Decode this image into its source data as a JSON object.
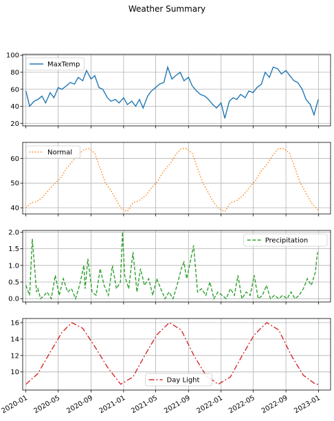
{
  "chart_data": {
    "title": "Weather Summary",
    "x_axis": {
      "type": "date",
      "range": [
        "2019-12-20",
        "2023-02-15"
      ],
      "tick_labels": [
        "2020-01",
        "2020-05",
        "2020-09",
        "2021-01",
        "2021-05",
        "2021-09",
        "2022-01",
        "2022-05",
        "2022-09",
        "2023-01"
      ],
      "tick_dates": [
        "2020-01-01",
        "2020-05-01",
        "2020-09-01",
        "2021-01-01",
        "2021-05-01",
        "2021-09-01",
        "2022-01-01",
        "2022-05-01",
        "2022-09-01",
        "2023-01-01"
      ]
    },
    "grid": true,
    "panels": [
      {
        "type": "line",
        "series_name": "MaxTemp",
        "color": "#1f77b4",
        "line_style": "solid",
        "legend_position": "upper-left",
        "ylim": [
          17,
          101
        ],
        "yticks": [
          20,
          40,
          60,
          80,
          100
        ],
        "x": [
          "2020-01-01",
          "2020-01-15",
          "2020-02-01",
          "2020-02-15",
          "2020-03-01",
          "2020-03-15",
          "2020-04-01",
          "2020-04-15",
          "2020-05-01",
          "2020-05-15",
          "2020-06-01",
          "2020-06-15",
          "2020-07-01",
          "2020-07-15",
          "2020-08-01",
          "2020-08-15",
          "2020-09-01",
          "2020-09-15",
          "2020-10-01",
          "2020-10-15",
          "2020-11-01",
          "2020-11-15",
          "2020-12-01",
          "2020-12-15",
          "2021-01-01",
          "2021-01-15",
          "2021-02-01",
          "2021-02-15",
          "2021-03-01",
          "2021-03-15",
          "2021-04-01",
          "2021-04-15",
          "2021-05-01",
          "2021-05-15",
          "2021-06-01",
          "2021-06-15",
          "2021-07-01",
          "2021-07-15",
          "2021-08-01",
          "2021-08-15",
          "2021-09-01",
          "2021-09-15",
          "2021-10-01",
          "2021-10-15",
          "2021-11-01",
          "2021-11-15",
          "2021-12-01",
          "2021-12-15",
          "2022-01-01",
          "2022-01-15",
          "2022-02-01",
          "2022-02-15",
          "2022-03-01",
          "2022-03-15",
          "2022-04-01",
          "2022-04-15",
          "2022-05-01",
          "2022-05-15",
          "2022-06-01",
          "2022-06-15",
          "2022-07-01",
          "2022-07-15",
          "2022-08-01",
          "2022-08-15",
          "2022-09-01",
          "2022-09-15",
          "2022-10-01",
          "2022-10-15",
          "2022-11-01",
          "2022-11-15",
          "2022-12-01",
          "2022-12-15",
          "2022-12-31"
        ],
        "values": [
          58,
          40,
          46,
          48,
          52,
          44,
          56,
          50,
          62,
          60,
          64,
          68,
          66,
          74,
          70,
          82,
          72,
          76,
          62,
          60,
          50,
          46,
          48,
          44,
          50,
          42,
          46,
          40,
          48,
          38,
          52,
          58,
          62,
          66,
          68,
          86,
          72,
          76,
          80,
          70,
          74,
          64,
          58,
          54,
          52,
          48,
          42,
          38,
          44,
          26,
          46,
          50,
          48,
          54,
          50,
          58,
          56,
          62,
          66,
          80,
          74,
          86,
          84,
          78,
          82,
          76,
          70,
          68,
          60,
          48,
          42,
          30,
          48
        ]
      },
      {
        "type": "line",
        "series_name": "Normal",
        "color": "#ff7f0e",
        "line_style": "dotted",
        "legend_position": "upper-left",
        "ylim": [
          37.5,
          66.5
        ],
        "yticks": [
          40,
          50,
          60
        ],
        "x": [
          "2020-01-01",
          "2020-01-20",
          "2020-02-10",
          "2020-03-01",
          "2020-03-25",
          "2020-04-15",
          "2020-05-10",
          "2020-06-01",
          "2020-06-25",
          "2020-07-15",
          "2020-08-05",
          "2020-08-25",
          "2020-09-15",
          "2020-10-05",
          "2020-10-25",
          "2020-11-15",
          "2020-12-05",
          "2020-12-25",
          "2021-01-15",
          "2021-02-05",
          "2021-03-01",
          "2021-03-25",
          "2021-04-15",
          "2021-05-10",
          "2021-06-01",
          "2021-06-25",
          "2021-07-15",
          "2021-08-05",
          "2021-08-25",
          "2021-09-15",
          "2021-10-05",
          "2021-10-25",
          "2021-11-15",
          "2021-12-05",
          "2021-12-25",
          "2022-01-15",
          "2022-02-05",
          "2022-03-01",
          "2022-03-25",
          "2022-04-15",
          "2022-05-10",
          "2022-06-01",
          "2022-06-25",
          "2022-07-15",
          "2022-08-05",
          "2022-08-25",
          "2022-09-15",
          "2022-10-05",
          "2022-10-25",
          "2022-11-15",
          "2022-12-05",
          "2022-12-31"
        ],
        "values": [
          40,
          42,
          42.5,
          44,
          47,
          49.5,
          52,
          56,
          59,
          61.5,
          63.5,
          64,
          62,
          56,
          50,
          47,
          43,
          39.5,
          38.5,
          42,
          43,
          45,
          48,
          51,
          55,
          58,
          61.5,
          64,
          64,
          62,
          56,
          50,
          46,
          42,
          39.5,
          38.5,
          42,
          43,
          45,
          48,
          51,
          55,
          58,
          61.5,
          64,
          64,
          62,
          56,
          50,
          46,
          42,
          39
        ]
      },
      {
        "type": "line",
        "series_name": "Precipitation",
        "color": "#2ca02c",
        "line_style": "dashed",
        "legend_position": "upper-right",
        "ylim": [
          -0.1,
          2.05
        ],
        "yticks": [
          0.0,
          0.5,
          1.0,
          1.5,
          2.0
        ],
        "ytick_labels": [
          "0.0",
          "0.5",
          "1.0",
          "1.5",
          "2.0"
        ],
        "x": [
          "2020-01-01",
          "2020-01-15",
          "2020-01-25",
          "2020-02-10",
          "2020-02-15",
          "2020-02-25",
          "2020-03-10",
          "2020-03-20",
          "2020-04-05",
          "2020-04-20",
          "2020-05-05",
          "2020-05-20",
          "2020-06-05",
          "2020-06-20",
          "2020-07-05",
          "2020-07-20",
          "2020-08-05",
          "2020-08-10",
          "2020-08-20",
          "2020-09-05",
          "2020-09-20",
          "2020-10-05",
          "2020-10-20",
          "2020-11-05",
          "2020-11-20",
          "2020-12-05",
          "2020-12-20",
          "2020-12-28",
          "2021-01-05",
          "2021-01-20",
          "2021-02-05",
          "2021-02-20",
          "2021-03-05",
          "2021-03-20",
          "2021-04-05",
          "2021-04-20",
          "2021-05-05",
          "2021-05-20",
          "2021-06-05",
          "2021-06-20",
          "2021-07-05",
          "2021-07-20",
          "2021-08-05",
          "2021-08-15",
          "2021-08-25",
          "2021-09-05",
          "2021-09-20",
          "2021-10-05",
          "2021-10-20",
          "2021-11-05",
          "2021-11-20",
          "2021-12-05",
          "2021-12-20",
          "2022-01-05",
          "2022-01-20",
          "2022-02-05",
          "2022-02-20",
          "2022-03-05",
          "2022-03-20",
          "2022-04-05",
          "2022-04-20",
          "2022-05-05",
          "2022-05-20",
          "2022-06-05",
          "2022-06-20",
          "2022-07-05",
          "2022-07-20",
          "2022-08-05",
          "2022-08-20",
          "2022-09-05",
          "2022-09-20",
          "2022-10-05",
          "2022-10-20",
          "2022-11-05",
          "2022-11-20",
          "2022-12-05",
          "2022-12-20",
          "2022-12-28"
        ],
        "values": [
          0.4,
          0.1,
          1.8,
          0.2,
          0.3,
          0.0,
          0.1,
          0.2,
          0.0,
          0.7,
          0.1,
          0.6,
          0.2,
          0.3,
          0.0,
          0.4,
          1.0,
          0.3,
          1.2,
          0.2,
          0.1,
          0.9,
          0.4,
          0.1,
          1.0,
          0.3,
          0.5,
          2.0,
          0.7,
          0.3,
          1.4,
          0.2,
          0.9,
          0.4,
          0.6,
          0.1,
          0.6,
          0.3,
          0.0,
          0.2,
          0.0,
          0.4,
          0.9,
          1.1,
          0.6,
          1.0,
          1.6,
          0.2,
          0.3,
          0.1,
          0.5,
          0.0,
          0.2,
          0.1,
          0.0,
          0.3,
          0.1,
          0.7,
          0.0,
          0.2,
          0.1,
          0.7,
          0.0,
          0.1,
          0.4,
          0.0,
          0.1,
          0.0,
          0.1,
          0.0,
          0.2,
          0.0,
          0.1,
          0.3,
          0.6,
          0.4,
          0.8,
          1.4
        ]
      },
      {
        "type": "line",
        "series_name": "Day Light",
        "color": "#d62728",
        "line_style": "dashdot",
        "legend_position": "lower-center",
        "ylim": [
          7.8,
          16.5
        ],
        "yticks": [
          10,
          12,
          14,
          16
        ],
        "x": [
          "2020-01-01",
          "2020-02-15",
          "2020-04-01",
          "2020-05-15",
          "2020-06-21",
          "2020-08-01",
          "2020-09-15",
          "2020-11-01",
          "2020-12-21",
          "2021-02-05",
          "2021-03-21",
          "2021-05-05",
          "2021-06-21",
          "2021-08-05",
          "2021-09-21",
          "2021-11-05",
          "2021-12-21",
          "2022-02-05",
          "2022-03-21",
          "2022-05-05",
          "2022-06-21",
          "2022-08-05",
          "2022-09-21",
          "2022-11-05",
          "2022-12-21",
          "2022-12-31"
        ],
        "values": [
          8.5,
          9.8,
          12.4,
          14.8,
          16.0,
          15.3,
          13.1,
          10.6,
          8.5,
          9.4,
          12.0,
          14.5,
          16.0,
          15.1,
          12.0,
          9.6,
          8.5,
          9.4,
          12.0,
          14.5,
          16.0,
          15.1,
          12.0,
          9.6,
          8.5,
          8.5
        ]
      }
    ]
  }
}
